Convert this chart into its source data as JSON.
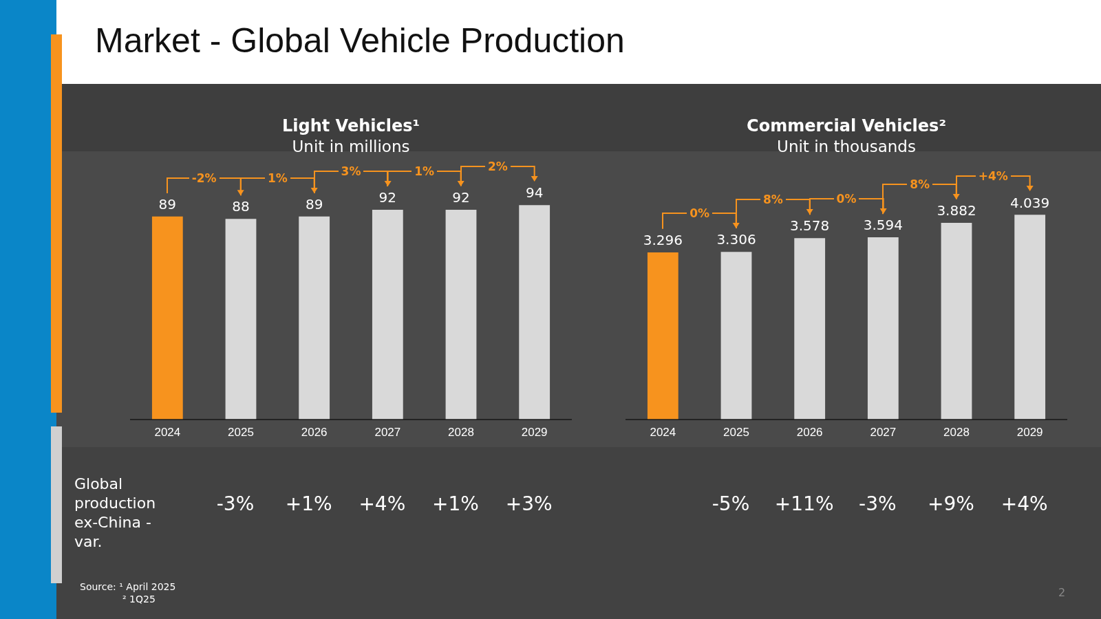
{
  "chart_data": [
    {
      "type": "other",
      "title": "Market - Global Vehicle Production",
      "annotations": [
        "Global production ex-China - var.",
        "Source: ¹ April 2025",
        "² 1Q25",
        "2"
      ]
    },
    {
      "type": "bar",
      "title": "Light Vehicles¹",
      "subtitle": "Unit in millions",
      "categories": [
        "2024",
        "2025",
        "2026",
        "2027",
        "2028",
        "2029"
      ],
      "values": [
        89,
        88,
        89,
        92,
        92,
        94
      ],
      "colors": [
        "#f7931e",
        "#d9d9d9",
        "#d9d9d9",
        "#d9d9d9",
        "#d9d9d9",
        "#d9d9d9"
      ],
      "value_labels": [
        "89",
        "88",
        "89",
        "92",
        "92",
        "94"
      ],
      "legend": false,
      "grid": false,
      "annotations": [
        "-2%",
        "1%",
        "3%",
        "1%",
        "2%",
        "-3%",
        "+1%",
        "+4%",
        "+1%",
        "+3%"
      ]
    },
    {
      "type": "bar",
      "title": "Commercial Vehicles²",
      "subtitle": "Unit in thousands",
      "categories": [
        "2024",
        "2025",
        "2026",
        "2027",
        "2028",
        "2029"
      ],
      "values": [
        3296,
        3306,
        3578,
        3594,
        3882,
        4039
      ],
      "colors": [
        "#f7931e",
        "#d9d9d9",
        "#d9d9d9",
        "#d9d9d9",
        "#d9d9d9",
        "#d9d9d9"
      ],
      "value_labels": [
        "3.296",
        "3.306",
        "3.578",
        "3.594",
        "3.882",
        "4.039"
      ],
      "legend": false,
      "grid": false,
      "annotations": [
        "0%",
        "8%",
        "0%",
        "8%",
        "+4%",
        "-5%",
        "+11%",
        "-3%",
        "+9%",
        "+4%"
      ]
    }
  ]
}
